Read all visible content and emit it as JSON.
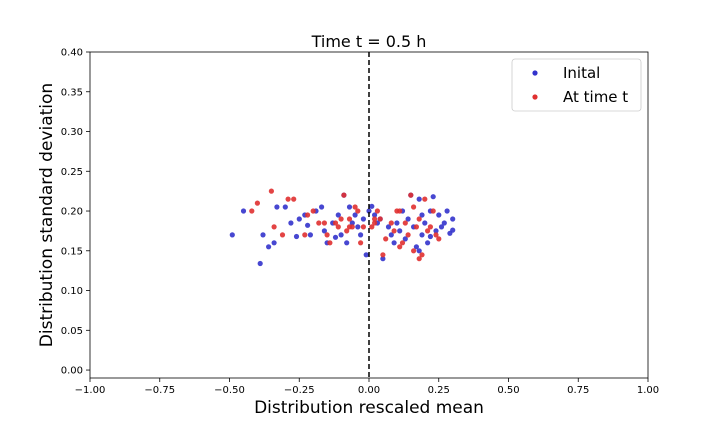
{
  "chart_data": {
    "type": "scatter",
    "title": "Time t = 0.5 h",
    "xlabel": "Distribution rescaled mean",
    "ylabel": "Distribution standard deviation",
    "xlim": [
      -1.0,
      1.0
    ],
    "ylim": [
      -0.01,
      0.4
    ],
    "xticks": [
      -1.0,
      -0.75,
      -0.5,
      -0.25,
      0.0,
      0.25,
      0.5,
      0.75,
      1.0
    ],
    "xtick_labels": [
      "−1.00",
      "−0.75",
      "−0.50",
      "−0.25",
      "0.00",
      "0.25",
      "0.50",
      "0.75",
      "1.00"
    ],
    "yticks": [
      0.0,
      0.05,
      0.1,
      0.15,
      0.2,
      0.25,
      0.3,
      0.35,
      0.4
    ],
    "ytick_labels": [
      "0.00",
      "0.05",
      "0.10",
      "0.15",
      "0.20",
      "0.25",
      "0.30",
      "0.35",
      "0.40"
    ],
    "vline": {
      "x": 0.0,
      "style": "dashed",
      "color": "#000000"
    },
    "grid": false,
    "legend_position": "top-right",
    "series": [
      {
        "name": "Inital",
        "color": "#3333cc",
        "points": [
          [
            -0.49,
            0.17
          ],
          [
            -0.45,
            0.2
          ],
          [
            -0.39,
            0.134
          ],
          [
            -0.38,
            0.17
          ],
          [
            -0.36,
            0.155
          ],
          [
            -0.34,
            0.16
          ],
          [
            -0.33,
            0.205
          ],
          [
            -0.3,
            0.205
          ],
          [
            -0.28,
            0.185
          ],
          [
            -0.26,
            0.168
          ],
          [
            -0.25,
            0.19
          ],
          [
            -0.23,
            0.195
          ],
          [
            -0.22,
            0.182
          ],
          [
            -0.21,
            0.17
          ],
          [
            -0.19,
            0.2
          ],
          [
            -0.17,
            0.205
          ],
          [
            -0.16,
            0.175
          ],
          [
            -0.15,
            0.16
          ],
          [
            -0.13,
            0.185
          ],
          [
            -0.12,
            0.167
          ],
          [
            -0.11,
            0.195
          ],
          [
            -0.1,
            0.17
          ],
          [
            -0.09,
            0.22
          ],
          [
            -0.08,
            0.16
          ],
          [
            -0.07,
            0.205
          ],
          [
            -0.06,
            0.185
          ],
          [
            -0.05,
            0.195
          ],
          [
            -0.04,
            0.18
          ],
          [
            -0.03,
            0.17
          ],
          [
            -0.01,
            0.145
          ],
          [
            0.0,
            0.2
          ],
          [
            0.02,
            0.195
          ],
          [
            0.03,
            0.185
          ],
          [
            0.04,
            0.19
          ],
          [
            0.05,
            0.14
          ],
          [
            0.07,
            0.18
          ],
          [
            0.08,
            0.17
          ],
          [
            0.09,
            0.16
          ],
          [
            0.1,
            0.185
          ],
          [
            0.11,
            0.175
          ],
          [
            0.12,
            0.2
          ],
          [
            0.13,
            0.165
          ],
          [
            0.14,
            0.19
          ],
          [
            0.15,
            0.22
          ],
          [
            0.16,
            0.18
          ],
          [
            0.17,
            0.155
          ],
          [
            0.18,
            0.215
          ],
          [
            0.19,
            0.17
          ],
          [
            0.2,
            0.185
          ],
          [
            0.21,
            0.16
          ],
          [
            0.22,
            0.2
          ],
          [
            0.23,
            0.218
          ],
          [
            0.24,
            0.175
          ],
          [
            0.25,
            0.195
          ],
          [
            0.26,
            0.18
          ],
          [
            0.27,
            0.185
          ],
          [
            0.28,
            0.2
          ],
          [
            0.29,
            0.172
          ],
          [
            0.3,
            0.19
          ],
          [
            0.3,
            0.176
          ],
          [
            0.18,
            0.15
          ],
          [
            0.19,
            0.195
          ],
          [
            0.22,
            0.168
          ],
          [
            -0.02,
            0.19
          ],
          [
            0.01,
            0.206
          ]
        ]
      },
      {
        "name": "At time t",
        "color": "#e03030",
        "points": [
          [
            -0.42,
            0.2
          ],
          [
            -0.4,
            0.21
          ],
          [
            -0.35,
            0.225
          ],
          [
            -0.34,
            0.18
          ],
          [
            -0.31,
            0.17
          ],
          [
            -0.29,
            0.215
          ],
          [
            -0.27,
            0.215
          ],
          [
            -0.23,
            0.17
          ],
          [
            -0.22,
            0.195
          ],
          [
            -0.2,
            0.2
          ],
          [
            -0.18,
            0.185
          ],
          [
            -0.16,
            0.185
          ],
          [
            -0.15,
            0.17
          ],
          [
            -0.14,
            0.16
          ],
          [
            -0.12,
            0.185
          ],
          [
            -0.11,
            0.18
          ],
          [
            -0.1,
            0.19
          ],
          [
            -0.09,
            0.22
          ],
          [
            -0.08,
            0.175
          ],
          [
            -0.07,
            0.19
          ],
          [
            -0.06,
            0.18
          ],
          [
            -0.05,
            0.205
          ],
          [
            -0.04,
            0.2
          ],
          [
            -0.03,
            0.16
          ],
          [
            -0.02,
            0.18
          ],
          [
            0.01,
            0.18
          ],
          [
            0.02,
            0.185
          ],
          [
            0.03,
            0.2
          ],
          [
            0.04,
            0.19
          ],
          [
            0.05,
            0.145
          ],
          [
            0.06,
            0.165
          ],
          [
            0.08,
            0.185
          ],
          [
            0.09,
            0.175
          ],
          [
            0.1,
            0.2
          ],
          [
            0.11,
            0.155
          ],
          [
            0.12,
            0.16
          ],
          [
            0.14,
            0.17
          ],
          [
            0.15,
            0.22
          ],
          [
            0.16,
            0.205
          ],
          [
            0.17,
            0.18
          ],
          [
            0.18,
            0.19
          ],
          [
            0.19,
            0.145
          ],
          [
            0.2,
            0.215
          ],
          [
            0.21,
            0.175
          ],
          [
            0.22,
            0.18
          ],
          [
            0.23,
            0.2
          ],
          [
            0.24,
            0.17
          ],
          [
            0.25,
            0.165
          ],
          [
            0.16,
            0.15
          ],
          [
            0.13,
            0.185
          ],
          [
            -0.07,
            0.18
          ],
          [
            0.02,
            0.19
          ],
          [
            0.11,
            0.2
          ],
          [
            0.18,
            0.14
          ]
        ]
      }
    ]
  }
}
